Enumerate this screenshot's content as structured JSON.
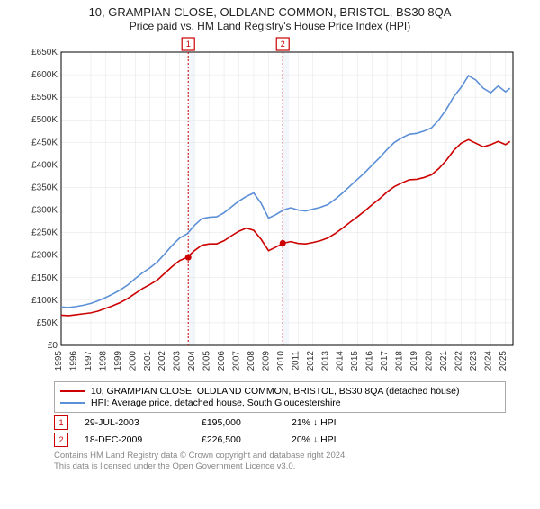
{
  "title": "10, GRAMPIAN CLOSE, OLDLAND COMMON, BRISTOL, BS30 8QA",
  "subtitle": "Price paid vs. HM Land Registry's House Price Index (HPI)",
  "chart": {
    "type": "line",
    "background_color": "#ffffff",
    "grid_color": "#e3e3e3",
    "axis_color": "#000000",
    "label_fontsize": 10,
    "x_years": [
      1995,
      1996,
      1997,
      1998,
      1999,
      2000,
      2001,
      2002,
      2003,
      2004,
      2005,
      2006,
      2007,
      2008,
      2009,
      2010,
      2011,
      2012,
      2013,
      2014,
      2015,
      2016,
      2017,
      2018,
      2019,
      2020,
      2021,
      2022,
      2023,
      2024,
      2025
    ],
    "xlim": [
      1995,
      2025.5
    ],
    "ylim": [
      0,
      650000
    ],
    "ytick_step": 50000,
    "ytick_labels": [
      "£0",
      "£50K",
      "£100K",
      "£150K",
      "£200K",
      "£250K",
      "£300K",
      "£350K",
      "£400K",
      "£450K",
      "£500K",
      "£550K",
      "£600K",
      "£650K"
    ],
    "series": [
      {
        "name": "property",
        "color": "#cc0000",
        "legend_label": "10, GRAMPIAN CLOSE, OLDLAND COMMON, BRISTOL, BS30 8QA (detached house)",
        "data": [
          [
            1995.0,
            67000
          ],
          [
            1995.5,
            66000
          ],
          [
            1996.0,
            68000
          ],
          [
            1996.5,
            70000
          ],
          [
            1997.0,
            72000
          ],
          [
            1997.5,
            76000
          ],
          [
            1998.0,
            82000
          ],
          [
            1998.5,
            88000
          ],
          [
            1999.0,
            95000
          ],
          [
            1999.5,
            104000
          ],
          [
            2000.0,
            115000
          ],
          [
            2000.5,
            126000
          ],
          [
            2001.0,
            135000
          ],
          [
            2001.5,
            145000
          ],
          [
            2002.0,
            160000
          ],
          [
            2002.5,
            175000
          ],
          [
            2003.0,
            188000
          ],
          [
            2003.5,
            195000
          ],
          [
            2004.0,
            210000
          ],
          [
            2004.5,
            222000
          ],
          [
            2005.0,
            225000
          ],
          [
            2005.5,
            225000
          ],
          [
            2006.0,
            232000
          ],
          [
            2006.5,
            243000
          ],
          [
            2007.0,
            253000
          ],
          [
            2007.5,
            260000
          ],
          [
            2008.0,
            255000
          ],
          [
            2008.5,
            235000
          ],
          [
            2009.0,
            210000
          ],
          [
            2009.5,
            218000
          ],
          [
            2010.0,
            226500
          ],
          [
            2010.5,
            230000
          ],
          [
            2011.0,
            226000
          ],
          [
            2011.5,
            225000
          ],
          [
            2012.0,
            228000
          ],
          [
            2012.5,
            232000
          ],
          [
            2013.0,
            238000
          ],
          [
            2013.5,
            248000
          ],
          [
            2014.0,
            260000
          ],
          [
            2014.5,
            273000
          ],
          [
            2015.0,
            285000
          ],
          [
            2015.5,
            298000
          ],
          [
            2016.0,
            312000
          ],
          [
            2016.5,
            325000
          ],
          [
            2017.0,
            340000
          ],
          [
            2017.5,
            352000
          ],
          [
            2018.0,
            360000
          ],
          [
            2018.5,
            367000
          ],
          [
            2019.0,
            368000
          ],
          [
            2019.5,
            372000
          ],
          [
            2020.0,
            378000
          ],
          [
            2020.5,
            392000
          ],
          [
            2021.0,
            410000
          ],
          [
            2021.5,
            432000
          ],
          [
            2022.0,
            448000
          ],
          [
            2022.5,
            456000
          ],
          [
            2023.0,
            448000
          ],
          [
            2023.5,
            440000
          ],
          [
            2024.0,
            445000
          ],
          [
            2024.5,
            452000
          ],
          [
            2025.0,
            445000
          ],
          [
            2025.3,
            452000
          ]
        ]
      },
      {
        "name": "hpi",
        "color": "#5b8fd6",
        "legend_label": "HPI: Average price, detached house, South Gloucestershire",
        "data": [
          [
            1995.0,
            85000
          ],
          [
            1995.5,
            84000
          ],
          [
            1996.0,
            86000
          ],
          [
            1996.5,
            89000
          ],
          [
            1997.0,
            93000
          ],
          [
            1997.5,
            99000
          ],
          [
            1998.0,
            106000
          ],
          [
            1998.5,
            114000
          ],
          [
            1999.0,
            123000
          ],
          [
            1999.5,
            134000
          ],
          [
            2000.0,
            148000
          ],
          [
            2000.5,
            161000
          ],
          [
            2001.0,
            172000
          ],
          [
            2001.5,
            185000
          ],
          [
            2002.0,
            203000
          ],
          [
            2002.5,
            222000
          ],
          [
            2003.0,
            238000
          ],
          [
            2003.5,
            247000
          ],
          [
            2004.0,
            266000
          ],
          [
            2004.5,
            281000
          ],
          [
            2005.0,
            284000
          ],
          [
            2005.5,
            285000
          ],
          [
            2006.0,
            294000
          ],
          [
            2006.5,
            307000
          ],
          [
            2007.0,
            320000
          ],
          [
            2007.5,
            330000
          ],
          [
            2008.0,
            338000
          ],
          [
            2008.5,
            315000
          ],
          [
            2009.0,
            282000
          ],
          [
            2009.5,
            290000
          ],
          [
            2010.0,
            300000
          ],
          [
            2010.5,
            305000
          ],
          [
            2011.0,
            300000
          ],
          [
            2011.5,
            298000
          ],
          [
            2012.0,
            302000
          ],
          [
            2012.5,
            306000
          ],
          [
            2013.0,
            312000
          ],
          [
            2013.5,
            324000
          ],
          [
            2014.0,
            338000
          ],
          [
            2014.5,
            353000
          ],
          [
            2015.0,
            368000
          ],
          [
            2015.5,
            383000
          ],
          [
            2016.0,
            400000
          ],
          [
            2016.5,
            416000
          ],
          [
            2017.0,
            434000
          ],
          [
            2017.5,
            450000
          ],
          [
            2018.0,
            460000
          ],
          [
            2018.5,
            468000
          ],
          [
            2019.0,
            470000
          ],
          [
            2019.5,
            475000
          ],
          [
            2020.0,
            482000
          ],
          [
            2020.5,
            500000
          ],
          [
            2021.0,
            523000
          ],
          [
            2021.5,
            551000
          ],
          [
            2022.0,
            572000
          ],
          [
            2022.5,
            598000
          ],
          [
            2023.0,
            588000
          ],
          [
            2023.5,
            570000
          ],
          [
            2024.0,
            560000
          ],
          [
            2024.5,
            575000
          ],
          [
            2025.0,
            562000
          ],
          [
            2025.3,
            570000
          ]
        ]
      }
    ],
    "markers": [
      {
        "n": 1,
        "x": 2003.58,
        "y": 195000,
        "band_end": 2004.0,
        "color": "#cc0000",
        "band_color": "#dce9f5"
      },
      {
        "n": 2,
        "x": 2009.96,
        "y": 226500,
        "band_end": 2010.4,
        "color": "#cc0000",
        "band_color": "#dce9f5"
      }
    ]
  },
  "sales": [
    {
      "n": 1,
      "date": "29-JUL-2003",
      "price": "£195,000",
      "delta": "21% ↓ HPI",
      "color": "#cc0000"
    },
    {
      "n": 2,
      "date": "18-DEC-2009",
      "price": "£226,500",
      "delta": "20% ↓ HPI",
      "color": "#cc0000"
    }
  ],
  "footer_line1": "Contains HM Land Registry data © Crown copyright and database right 2024.",
  "footer_line2": "This data is licensed under the Open Government Licence v3.0."
}
